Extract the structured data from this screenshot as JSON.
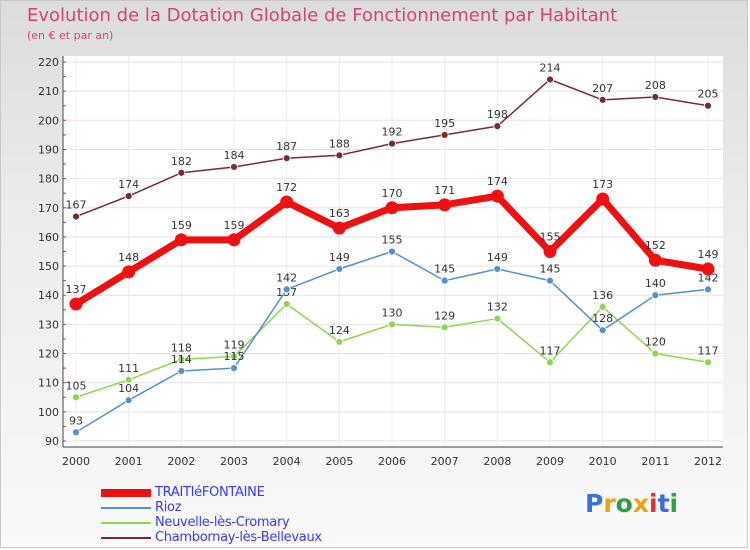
{
  "title": "Evolution de la Dotation Globale de Fonctionnement par Habitant",
  "subtitle": "(en € et par an)",
  "brand": "Proxiti",
  "colors": {
    "title": "#d0447a",
    "legend_text": "#3a3af0"
  },
  "chart_data": {
    "type": "line",
    "title": "Evolution de la Dotation Globale de Fonctionnement par Habitant",
    "subtitle": "(en € et par an)",
    "xlabel": "",
    "ylabel": "",
    "x": [
      "2000",
      "2001",
      "2002",
      "2003",
      "2004",
      "2005",
      "2006",
      "2007",
      "2008",
      "2009",
      "2010",
      "2011",
      "2012"
    ],
    "ylim": [
      90,
      220
    ],
    "yticks": [
      90,
      100,
      110,
      120,
      130,
      140,
      150,
      160,
      170,
      180,
      190,
      200,
      210,
      220
    ],
    "grid": true,
    "legend_position": "bottom-left",
    "series": [
      {
        "name": "TRAITIéFONTAINE",
        "color": "#ee1111",
        "emphasis": true,
        "values": [
          137,
          148,
          159,
          159,
          172,
          163,
          170,
          171,
          174,
          155,
          173,
          152,
          149
        ]
      },
      {
        "name": "Rioz",
        "color": "#5591cd",
        "emphasis": false,
        "values": [
          93,
          104,
          114,
          115,
          142,
          149,
          155,
          145,
          149,
          145,
          128,
          140,
          142
        ]
      },
      {
        "name": "Neuvelle-lès-Cromary",
        "color": "#8ed650",
        "emphasis": false,
        "values": [
          105,
          111,
          118,
          119,
          137,
          124,
          130,
          129,
          132,
          117,
          136,
          120,
          117
        ]
      },
      {
        "name": "Chambornay-lès-Bellevaux",
        "color": "#7a2b2f",
        "emphasis": false,
        "values": [
          167,
          174,
          182,
          184,
          187,
          188,
          192,
          195,
          198,
          214,
          207,
          208,
          205
        ]
      }
    ]
  }
}
